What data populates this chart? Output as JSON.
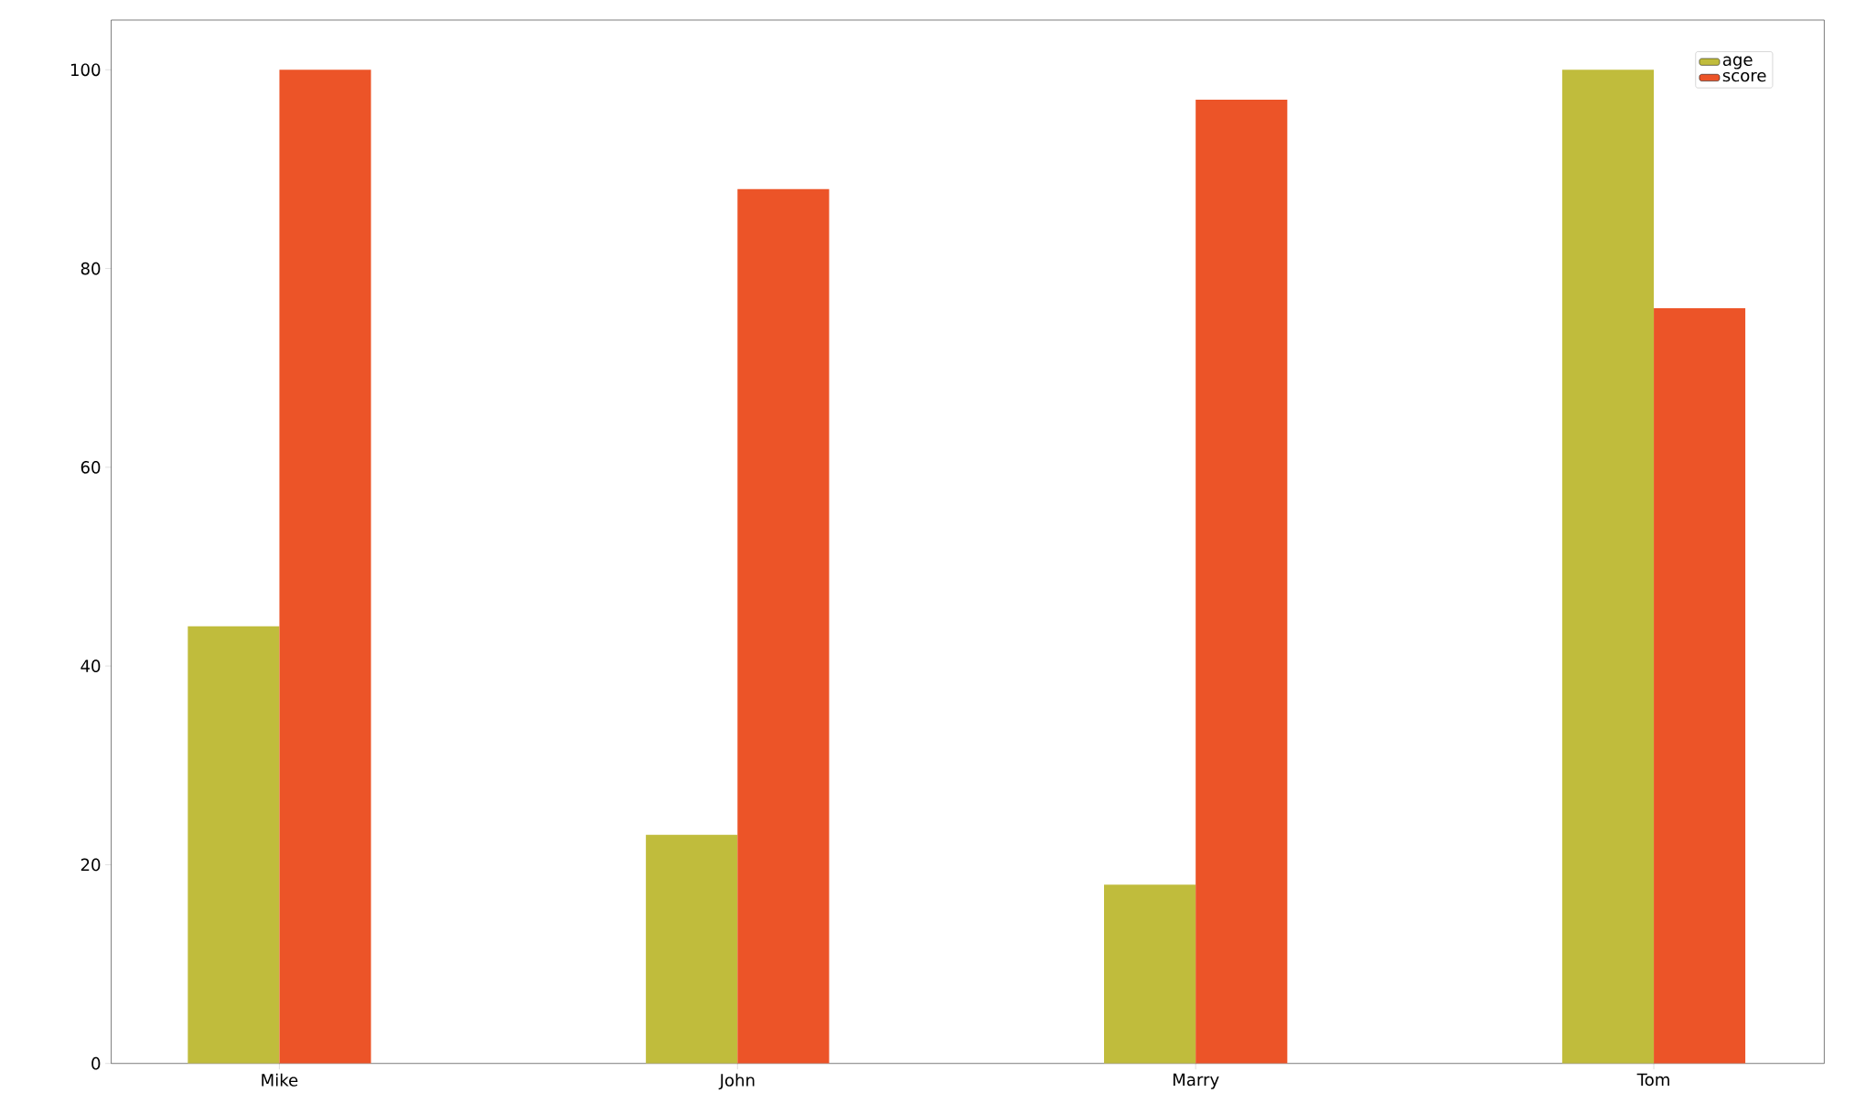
{
  "chart_data": {
    "type": "bar",
    "categories": [
      "Mike",
      "John",
      "Marry",
      "Tom"
    ],
    "series": [
      {
        "name": "age",
        "color": "#c0bc3c",
        "values": [
          44,
          23,
          18,
          100
        ]
      },
      {
        "name": "score",
        "color": "#ec5428",
        "values": [
          100,
          88,
          97,
          76
        ]
      }
    ],
    "ylim": [
      0,
      105
    ],
    "yticks": [
      0,
      20,
      40,
      60,
      80,
      100
    ],
    "legend": "top right",
    "grid": false
  }
}
